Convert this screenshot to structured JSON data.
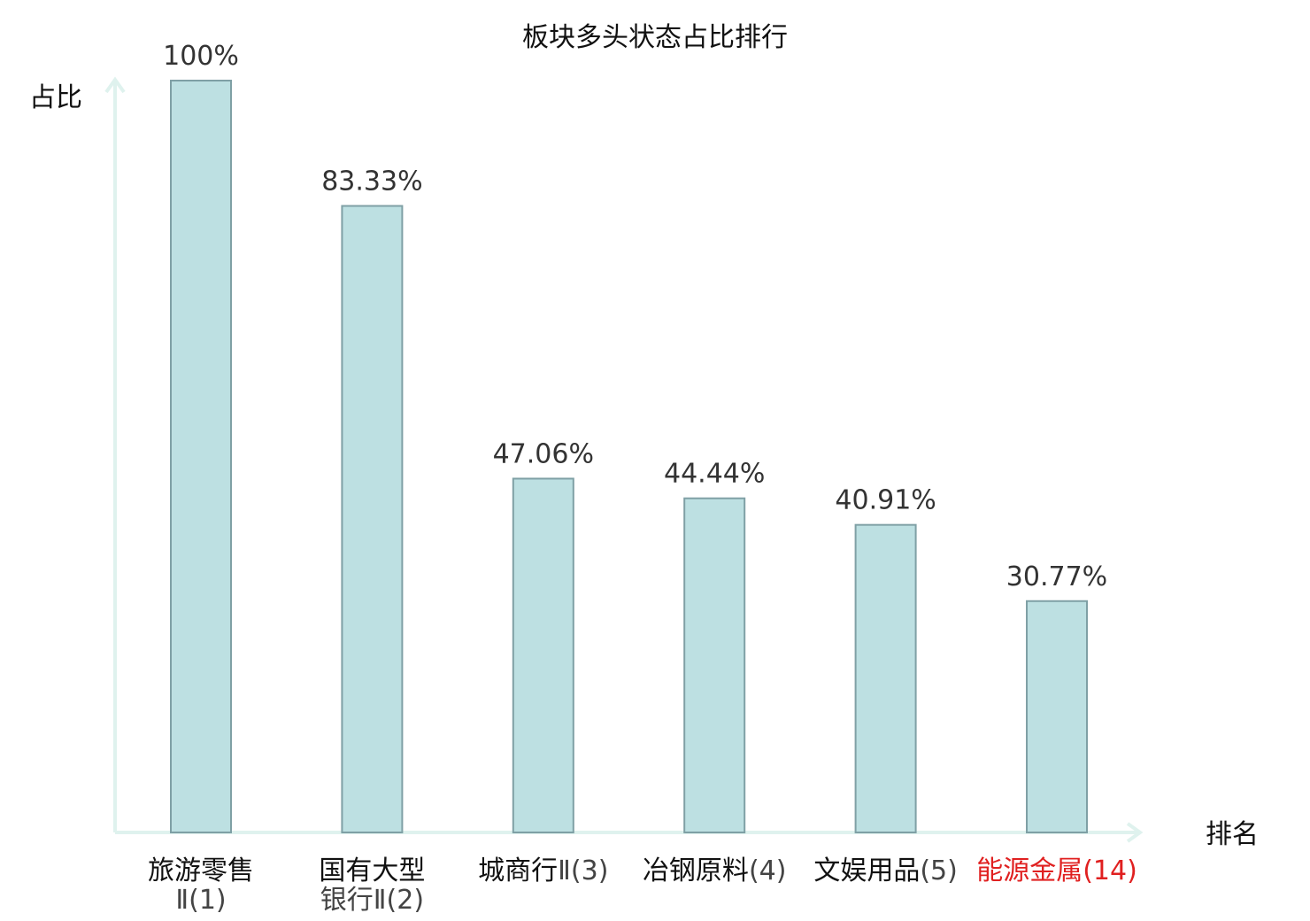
{
  "chart_data": {
    "type": "bar",
    "title": "板块多头状态占比排行",
    "ylabel": "占比",
    "xlabel": "排名",
    "ylim": [
      0,
      100
    ],
    "grid": false,
    "categories": [
      {
        "name": "旅游零售",
        "rank": "Ⅱ(1)",
        "highlight": false
      },
      {
        "name": "国有大型",
        "rank": "银行Ⅱ(2)",
        "highlight": false
      },
      {
        "name": "城商行",
        "rank": "Ⅱ(3)",
        "highlight": false
      },
      {
        "name": "冶钢原料",
        "rank": "(4)",
        "highlight": false
      },
      {
        "name": "文娱用品",
        "rank": "(5)",
        "highlight": false
      },
      {
        "name": "能源金属",
        "rank": "(14)",
        "highlight": true
      }
    ],
    "values": [
      100,
      83.33,
      47.06,
      44.44,
      40.91,
      30.77
    ],
    "data_labels": [
      "100%",
      "83.33%",
      "47.06%",
      "44.44%",
      "40.91%",
      "30.77%"
    ]
  },
  "colors": {
    "bar_fill": "#bde0e2",
    "bar_stroke": "#7fa0a5",
    "axis": "#dff2ee",
    "highlight_text": "#e02020"
  }
}
